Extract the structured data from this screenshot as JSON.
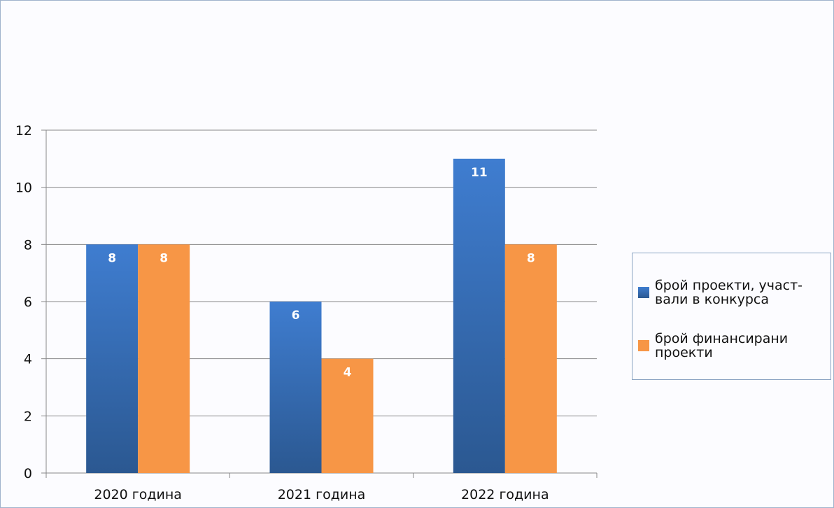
{
  "chart_data": {
    "type": "bar",
    "categories": [
      "2020 година",
      "2021 година",
      "2022 година"
    ],
    "series": [
      {
        "name": "брой проекти, участ-\nвали в конкурса",
        "values": [
          8,
          6,
          11
        ],
        "color": "#3d76c4"
      },
      {
        "name": "брой финансирани\nпроекти",
        "values": [
          8,
          4,
          8
        ],
        "color": "#f79646"
      }
    ],
    "y_ticks": [
      "0",
      "2",
      "4",
      "6",
      "8",
      "10",
      "12"
    ],
    "ylim": [
      0,
      12
    ],
    "grid": true,
    "legend_position": "right",
    "data_labels": true
  }
}
